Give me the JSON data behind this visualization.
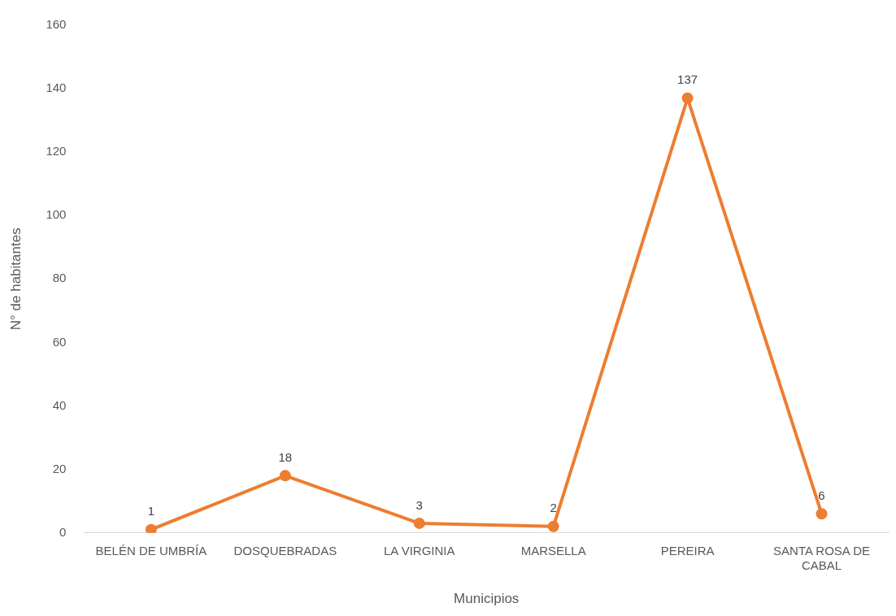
{
  "chart_data": {
    "type": "line",
    "xlabel": "Municipios",
    "ylabel": "N° de habitantes",
    "categories": [
      "BELÉN DE UMBRÍA",
      "DOSQUEBRADAS",
      "LA VIRGINIA",
      "MARSELLA",
      "PEREIRA",
      "SANTA ROSA DE CABAL"
    ],
    "series": [
      {
        "color": "#ed7d31",
        "values": [
          1,
          18,
          3,
          2,
          137,
          6
        ]
      }
    ],
    "ylim": [
      0,
      160
    ],
    "yticks": [
      0,
      20,
      40,
      60,
      80,
      100,
      120,
      140,
      160
    ],
    "grid": false,
    "legend": false,
    "marker": "circle",
    "line_style": "solid",
    "data_labels": true
  }
}
